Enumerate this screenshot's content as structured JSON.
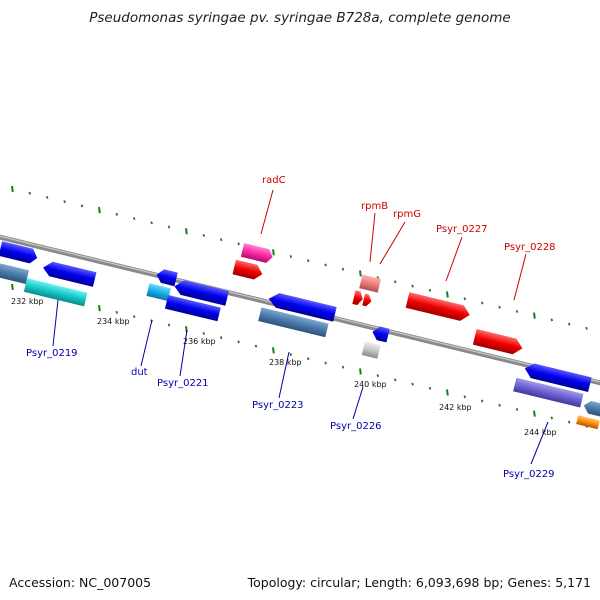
{
  "title": "Pseudomonas syringae pv. syringae B728a, complete genome",
  "footer": {
    "accession": "Accession: NC_007005",
    "summary": "Topology: circular; Length: 6,093,698 bp; Genes: 5,171"
  },
  "colors": {
    "backbone": "#8a8a8a",
    "tick": "#1e7a1e",
    "forward_label": "#cc0000",
    "reverse_label": "#0000aa"
  },
  "kbp_labels": [
    "232 kbp",
    "234 kbp",
    "236 kbp",
    "238 kbp",
    "240 kbp",
    "242 kbp",
    "244 kbp"
  ],
  "forward_genes": [
    "radC",
    "rpmB",
    "rpmG",
    "Psyr_0227",
    "Psyr_0228"
  ],
  "reverse_genes": [
    "Psyr_0219",
    "dut",
    "Psyr_0221",
    "Psyr_0223",
    "Psyr_0226",
    "Psyr_0229"
  ]
}
